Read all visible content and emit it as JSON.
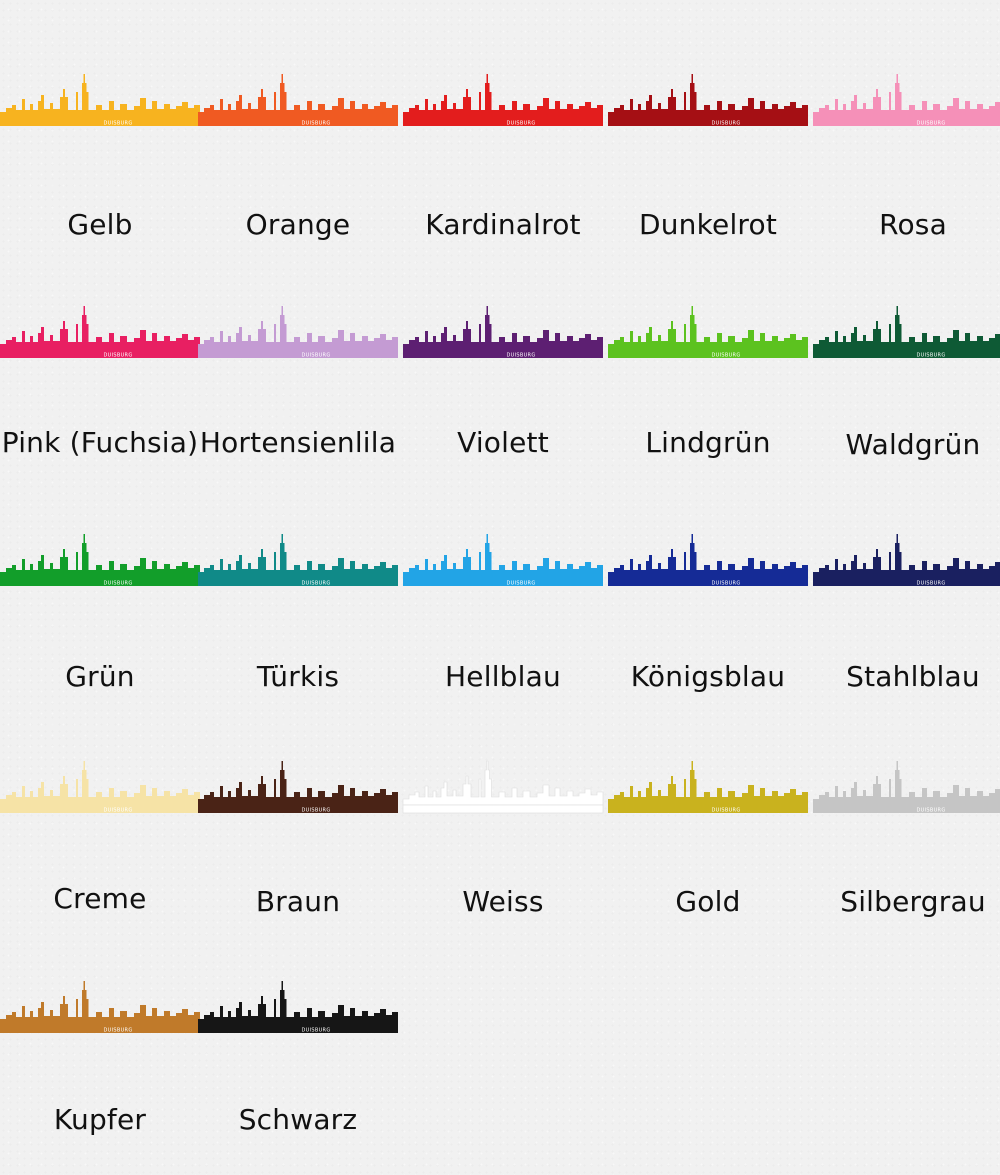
{
  "swatches": [
    {
      "label": "Gelb",
      "color": "#f7b31f"
    },
    {
      "label": "Orange",
      "color": "#f05a22"
    },
    {
      "label": "Kardinalrot",
      "color": "#e31d1d"
    },
    {
      "label": "Dunkelrot",
      "color": "#a50f14"
    },
    {
      "label": "Rosa",
      "color": "#f590b8"
    },
    {
      "label": "Pink (Fuchsia)",
      "color": "#e81f62"
    },
    {
      "label": "Hortensienlila",
      "color": "#c49bd3"
    },
    {
      "label": "Violett",
      "color": "#5d1f72"
    },
    {
      "label": "Lindgrün",
      "color": "#5cc21f"
    },
    {
      "label": "Waldgrün",
      "color": "#0e5a35"
    },
    {
      "label": "Grün",
      "color": "#129e2a"
    },
    {
      "label": "Türkis",
      "color": "#108a88"
    },
    {
      "label": "Hellblau",
      "color": "#22a4e6"
    },
    {
      "label": "Königsblau",
      "color": "#152b96"
    },
    {
      "label": "Stahlblau",
      "color": "#1a2060"
    },
    {
      "label": "Creme",
      "color": "#f6e3a6"
    },
    {
      "label": "Braun",
      "color": "#4a2316"
    },
    {
      "label": "Weiss",
      "color": "#ffffff"
    },
    {
      "label": "Gold",
      "color": "#c9b21e"
    },
    {
      "label": "Silbergrau",
      "color": "#c5c5c5"
    },
    {
      "label": "Kupfer",
      "color": "#c07a2a"
    },
    {
      "label": "Schwarz",
      "color": "#161616"
    }
  ],
  "city_tag": "DUISBURG"
}
